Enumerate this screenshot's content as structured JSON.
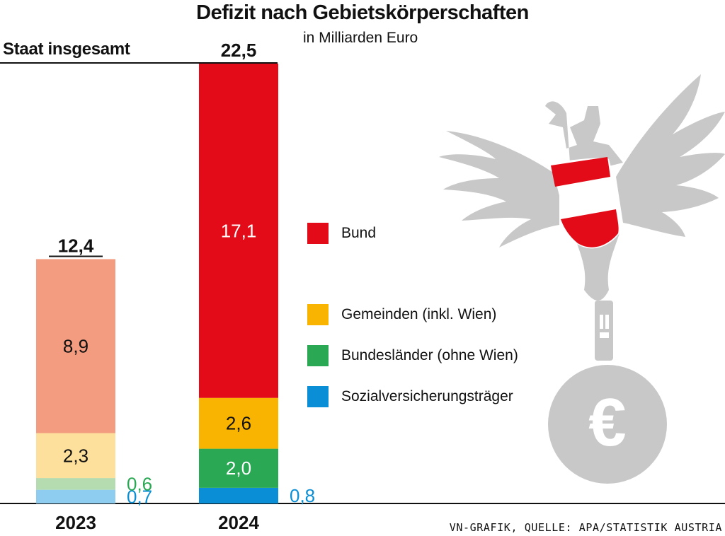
{
  "title": "Defizit nach Gebietskörperschaften",
  "subtitle": "in Milliarden Euro",
  "total_label": "Staat insgesamt",
  "source": "VN-GRAFIK, QUELLE: APA/STATISTIK AUSTRIA",
  "chart_data": {
    "type": "bar",
    "stacked": true,
    "title": "Defizit nach Gebietskörperschaften",
    "unit": "in Milliarden Euro",
    "categories": [
      "2023",
      "2024"
    ],
    "totals": [
      "12,4",
      "22,5"
    ],
    "series": [
      {
        "name": "Sozialversicherungsträger",
        "values": [
          0.7,
          0.8
        ],
        "labels": [
          "0,7",
          "0,8"
        ],
        "colors": [
          "#8ecdf0",
          "#0a8fd6"
        ],
        "label_color": "#0a8fd6"
      },
      {
        "name": "Bundesländer (ohne Wien)",
        "values": [
          0.6,
          2.0
        ],
        "labels": [
          "0,6",
          "2,0"
        ],
        "colors": [
          "#b5dcb0",
          "#2aa854"
        ],
        "label_color": "#2aa854"
      },
      {
        "name": "Gemeinden (inkl. Wien)",
        "values": [
          2.3,
          2.6
        ],
        "labels": [
          "2,3",
          "2,6"
        ],
        "colors": [
          "#fde09b",
          "#f8b400"
        ]
      },
      {
        "name": "Bund",
        "values": [
          8.9,
          17.1
        ],
        "labels": [
          "8,9",
          "17,1"
        ],
        "colors": [
          "#f39c80",
          "#e30b17"
        ]
      }
    ],
    "legend": [
      {
        "name": "Bund",
        "color": "#e30b17"
      },
      {
        "name": "Gemeinden (inkl. Wien)",
        "color": "#f8b400"
      },
      {
        "name": "Bundesländer (ohne Wien)",
        "color": "#2aa854"
      },
      {
        "name": "Sozialversicherungsträger",
        "color": "#0a8fd6"
      }
    ],
    "legend_position": "right",
    "ylim": [
      0,
      22.5
    ],
    "grid": false
  },
  "decoration": {
    "icon": "austrian-eagle-with-euro-icon",
    "euro_symbol": "€",
    "eagle_color": "#c8c8c8"
  }
}
